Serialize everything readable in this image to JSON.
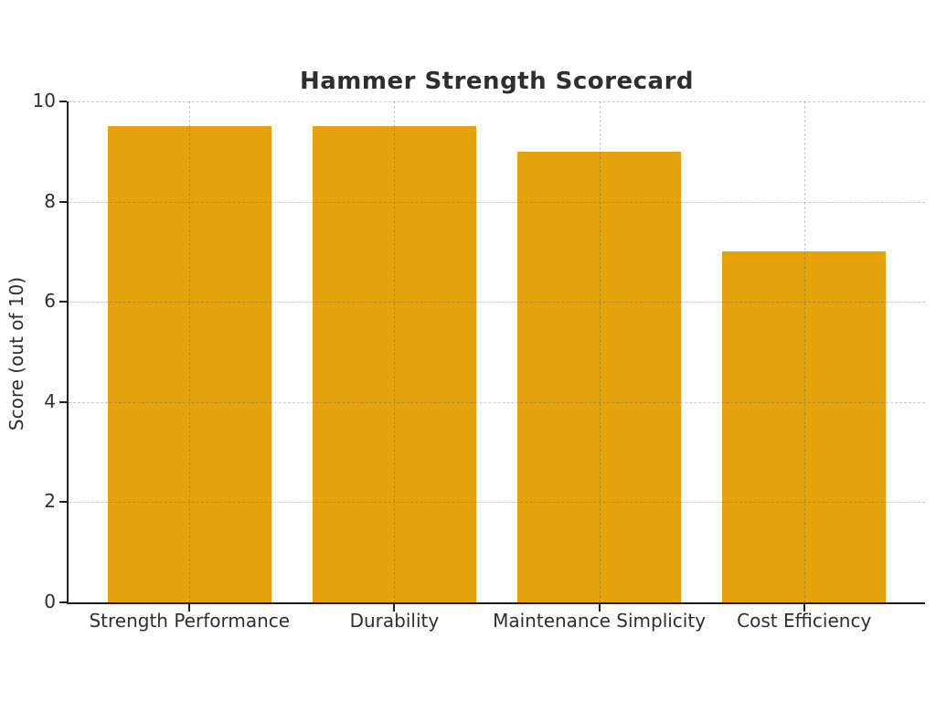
{
  "chart_data": {
    "type": "bar",
    "title": "Hammer Strength Scorecard",
    "ylabel": "Score (out of 10)",
    "xlabel": "",
    "categories": [
      "Strength Performance",
      "Durability",
      "Maintenance Simplicity",
      "Cost Efficiency"
    ],
    "values": [
      9.5,
      9.5,
      9.0,
      7.0
    ],
    "ylim": [
      0,
      10
    ],
    "yticks": [
      0,
      2,
      4,
      6,
      8,
      10
    ],
    "bar_color": "#E5A30B",
    "grid": "dashed both axes",
    "legend": "none"
  }
}
